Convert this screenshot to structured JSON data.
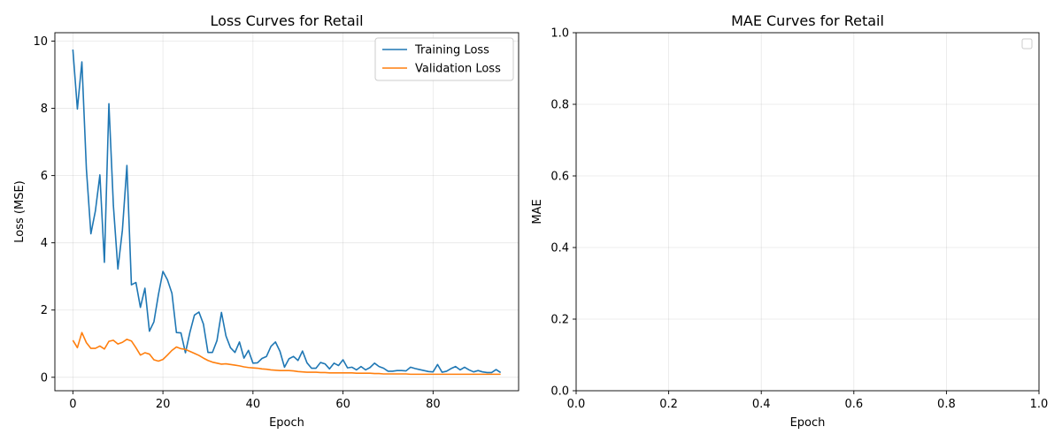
{
  "chart_data": [
    {
      "type": "line",
      "title": "Loss Curves for Retail",
      "xlabel": "Epoch",
      "ylabel": "Loss (MSE)",
      "xlim": [
        -4,
        99
      ],
      "ylim": [
        -0.4,
        10.25
      ],
      "xticks": [
        0,
        20,
        40,
        60,
        80
      ],
      "yticks": [
        0,
        2,
        4,
        6,
        8,
        10
      ],
      "grid": true,
      "legend": "top-right",
      "series": [
        {
          "name": "Training Loss",
          "color": "#1f77b4",
          "x": [
            0,
            1,
            2,
            3,
            4,
            5,
            6,
            7,
            8,
            9,
            10,
            11,
            12,
            13,
            14,
            15,
            16,
            17,
            18,
            19,
            20,
            21,
            22,
            23,
            24,
            25,
            26,
            27,
            28,
            29,
            30,
            31,
            32,
            33,
            34,
            35,
            36,
            37,
            38,
            39,
            40,
            41,
            42,
            43,
            44,
            45,
            46,
            47,
            48,
            49,
            50,
            51,
            52,
            53,
            54,
            55,
            56,
            57,
            58,
            59,
            60,
            61,
            62,
            63,
            64,
            65,
            66,
            67,
            68,
            69,
            70,
            71,
            72,
            73,
            74,
            75,
            76,
            77,
            78,
            79,
            80,
            81,
            82,
            83,
            84,
            85,
            86,
            87,
            88,
            89,
            90,
            91,
            92,
            93,
            94,
            95
          ],
          "y": [
            9.75,
            7.98,
            9.38,
            6.2,
            4.27,
            4.95,
            6.02,
            3.42,
            8.14,
            5.1,
            3.22,
            4.38,
            6.3,
            2.75,
            2.82,
            2.08,
            2.65,
            1.37,
            1.65,
            2.46,
            3.15,
            2.9,
            2.5,
            1.33,
            1.32,
            0.73,
            1.34,
            1.85,
            1.94,
            1.58,
            0.74,
            0.74,
            1.09,
            1.93,
            1.23,
            0.88,
            0.74,
            1.05,
            0.57,
            0.8,
            0.42,
            0.43,
            0.56,
            0.62,
            0.92,
            1.05,
            0.77,
            0.3,
            0.55,
            0.62,
            0.5,
            0.78,
            0.43,
            0.27,
            0.27,
            0.44,
            0.4,
            0.25,
            0.42,
            0.35,
            0.52,
            0.28,
            0.3,
            0.22,
            0.32,
            0.22,
            0.29,
            0.42,
            0.32,
            0.27,
            0.18,
            0.18,
            0.2,
            0.2,
            0.19,
            0.3,
            0.26,
            0.23,
            0.2,
            0.17,
            0.16,
            0.38,
            0.15,
            0.18,
            0.26,
            0.32,
            0.22,
            0.3,
            0.22,
            0.16,
            0.2,
            0.16,
            0.14,
            0.14,
            0.23,
            0.14
          ]
        },
        {
          "name": "Validation Loss",
          "color": "#ff7f0e",
          "x": [
            0,
            1,
            2,
            3,
            4,
            5,
            6,
            7,
            8,
            9,
            10,
            11,
            12,
            13,
            14,
            15,
            16,
            17,
            18,
            19,
            20,
            21,
            22,
            23,
            24,
            25,
            26,
            27,
            28,
            29,
            30,
            31,
            32,
            33,
            34,
            35,
            36,
            37,
            38,
            39,
            40,
            41,
            42,
            43,
            44,
            45,
            46,
            47,
            48,
            49,
            50,
            51,
            52,
            53,
            54,
            55,
            56,
            57,
            58,
            59,
            60,
            61,
            62,
            63,
            64,
            65,
            66,
            67,
            68,
            69,
            70,
            71,
            72,
            73,
            74,
            75,
            76,
            77,
            78,
            79,
            80,
            81,
            82,
            83,
            84,
            85,
            86,
            87,
            88,
            89,
            90,
            91,
            92,
            93,
            94,
            95
          ],
          "y": [
            1.1,
            0.88,
            1.33,
            1.03,
            0.86,
            0.86,
            0.93,
            0.84,
            1.07,
            1.1,
            0.99,
            1.04,
            1.13,
            1.08,
            0.88,
            0.66,
            0.73,
            0.69,
            0.52,
            0.48,
            0.53,
            0.66,
            0.8,
            0.9,
            0.85,
            0.83,
            0.77,
            0.71,
            0.65,
            0.57,
            0.5,
            0.45,
            0.42,
            0.39,
            0.4,
            0.38,
            0.36,
            0.34,
            0.31,
            0.29,
            0.28,
            0.27,
            0.25,
            0.24,
            0.22,
            0.21,
            0.2,
            0.2,
            0.2,
            0.19,
            0.17,
            0.16,
            0.15,
            0.15,
            0.15,
            0.14,
            0.14,
            0.13,
            0.13,
            0.13,
            0.13,
            0.13,
            0.13,
            0.12,
            0.12,
            0.12,
            0.12,
            0.11,
            0.11,
            0.1,
            0.1,
            0.1,
            0.1,
            0.1,
            0.1,
            0.09,
            0.09,
            0.09,
            0.09,
            0.09,
            0.09,
            0.09,
            0.09,
            0.09,
            0.09,
            0.09,
            0.09,
            0.09,
            0.09,
            0.09,
            0.09,
            0.09,
            0.09,
            0.09,
            0.09,
            0.09
          ]
        }
      ]
    },
    {
      "type": "line",
      "title": "MAE Curves for Retail",
      "xlabel": "Epoch",
      "ylabel": "MAE",
      "xlim": [
        0,
        1
      ],
      "ylim": [
        0,
        1
      ],
      "xticks": [
        0.0,
        0.2,
        0.4,
        0.6,
        0.8,
        1.0
      ],
      "yticks": [
        0.0,
        0.2,
        0.4,
        0.6,
        0.8,
        1.0
      ],
      "grid": true,
      "legend": "top-right",
      "series": []
    }
  ]
}
